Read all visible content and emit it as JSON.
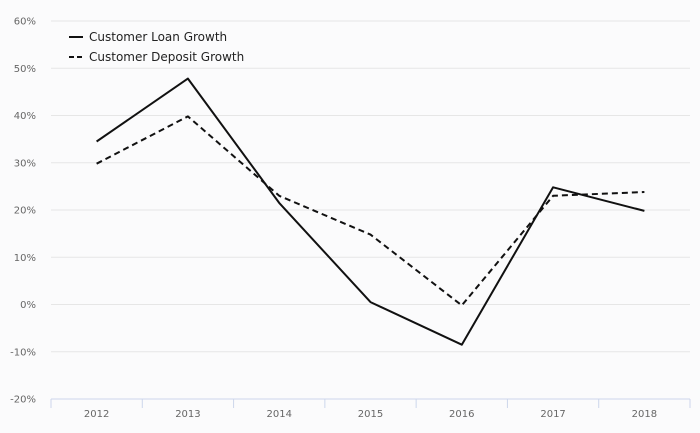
{
  "chart_data": {
    "type": "line",
    "categories": [
      "2012",
      "2013",
      "2014",
      "2015",
      "2016",
      "2017",
      "2018"
    ],
    "series": [
      {
        "name": "Customer Loan Growth",
        "style": "solid",
        "color": "#111111",
        "values": [
          34.5,
          47.8,
          21.5,
          0.5,
          -8.5,
          24.8,
          19.8
        ]
      },
      {
        "name": "Customer Deposit Growth",
        "style": "dashed",
        "color": "#111111",
        "values": [
          29.8,
          39.8,
          23.0,
          14.8,
          -0.2,
          23.0,
          23.8
        ]
      }
    ],
    "yticks": [
      "60%",
      "50%",
      "40%",
      "30%",
      "20%",
      "10%",
      "0%",
      "-10%",
      "-20%"
    ],
    "ylim": [
      -20,
      60
    ],
    "grid": true,
    "legend": "top-left"
  }
}
